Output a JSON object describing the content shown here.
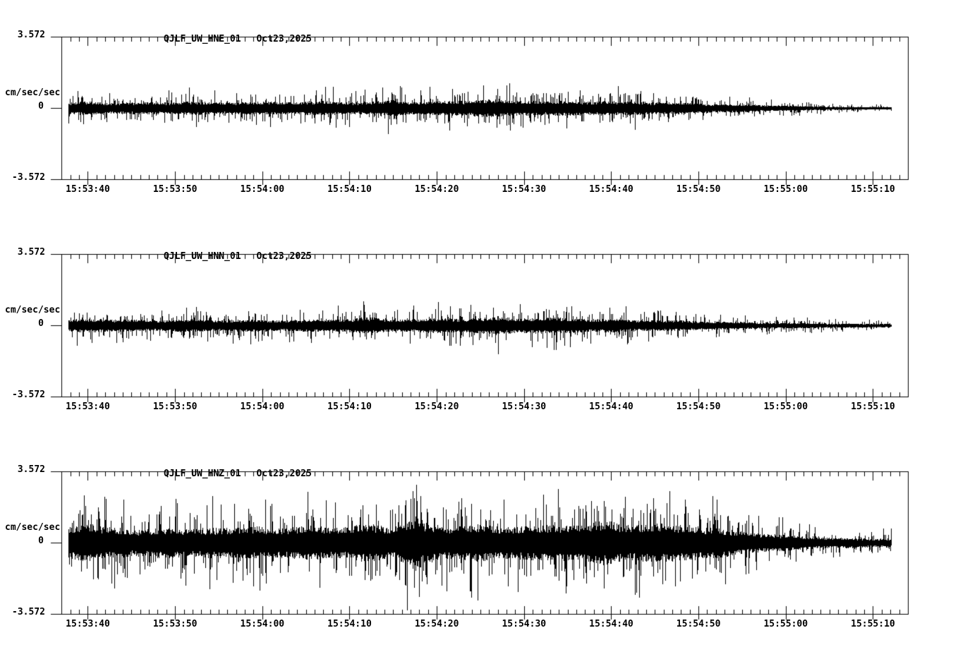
{
  "page": {
    "background": "#ffffff",
    "foreground": "#000000",
    "description_units": "cm/sec/sec"
  },
  "x_axis": {
    "labels": [
      "15:53:40",
      "15:53:50",
      "15:54:00",
      "15:54:10",
      "15:54:20",
      "15:54:30",
      "15:54:40",
      "15:54:50",
      "15:55:00",
      "15:55:10"
    ],
    "start_time": "15:53:37",
    "end_time": "15:55:14",
    "major_tick_interval_sec": 10,
    "minor_tick_interval_sec": 1
  },
  "chart_data": [
    {
      "type": "line",
      "title": "QJLF_UW_HNE_01   Oct23,2025",
      "title_channel": "QJLF_UW_HNE_01",
      "title_date": "Oct23,2025",
      "ylabel": "cm/sec/sec",
      "ylim": [
        -3.572,
        3.572
      ],
      "yticks": [
        "3.572",
        "0",
        "-3.572"
      ],
      "x": [
        "15:53:40",
        "15:53:50",
        "15:54:00",
        "15:54:10",
        "15:54:20",
        "15:54:30",
        "15:54:40",
        "15:54:50",
        "15:55:00",
        "15:55:10"
      ],
      "trace_start": "15:53:38",
      "trace_end": "15:55:12",
      "noise_seed": 101,
      "envelope_points_t_sec": [
        0,
        3,
        6,
        10,
        14,
        18,
        22,
        26,
        30,
        34,
        38,
        40,
        43,
        46,
        48,
        50,
        52,
        54,
        56,
        58,
        60,
        62,
        64,
        66,
        68,
        70,
        72,
        74,
        76,
        78,
        80,
        82,
        84,
        86,
        88,
        90,
        92,
        94.5
      ],
      "envelope_points_amp": [
        0.75,
        0.95,
        0.8,
        0.85,
        0.95,
        0.85,
        0.9,
        0.95,
        1.0,
        0.9,
        1.15,
        0.95,
        1.0,
        1.1,
        1.3,
        1.25,
        1.05,
        1.15,
        1.0,
        1.05,
        1.0,
        1.1,
        0.95,
        1.0,
        0.9,
        0.85,
        0.75,
        0.65,
        0.6,
        0.55,
        0.5,
        0.42,
        0.36,
        0.3,
        0.26,
        0.22,
        0.2,
        0.18
      ]
    },
    {
      "type": "line",
      "title": "QJLF_UW_HNN_01   Oct23,2025",
      "title_channel": "QJLF_UW_HNN_01",
      "title_date": "Oct23,2025",
      "ylabel": "cm/sec/sec",
      "ylim": [
        -3.572,
        3.572
      ],
      "yticks": [
        "3.572",
        "0",
        "-3.572"
      ],
      "x": [
        "15:53:40",
        "15:53:50",
        "15:54:00",
        "15:54:10",
        "15:54:20",
        "15:54:30",
        "15:54:40",
        "15:54:50",
        "15:55:00",
        "15:55:10"
      ],
      "trace_start": "15:53:38",
      "trace_end": "15:55:12",
      "noise_seed": 202,
      "envelope_points_t_sec": [
        0,
        2,
        4,
        6,
        10,
        14,
        18,
        22,
        26,
        30,
        33,
        35,
        37,
        40,
        43,
        46,
        48,
        50,
        52,
        54,
        56,
        58,
        60,
        62,
        64,
        66,
        68,
        70,
        73,
        76,
        79,
        82,
        85,
        88,
        91,
        94.5
      ],
      "envelope_points_amp": [
        0.7,
        0.95,
        1.05,
        0.85,
        0.8,
        0.9,
        0.8,
        0.85,
        0.8,
        0.9,
        1.0,
        1.15,
        0.9,
        0.95,
        1.05,
        1.0,
        1.15,
        1.25,
        1.1,
        1.2,
        1.05,
        1.1,
        1.0,
        0.95,
        0.9,
        0.85,
        0.8,
        0.75,
        0.65,
        0.55,
        0.48,
        0.42,
        0.38,
        0.34,
        0.3,
        0.28
      ]
    },
    {
      "type": "line",
      "title": "QJLF_UW_HNZ_01   Oct23,2025",
      "title_channel": "QJLF_UW_HNZ_01",
      "title_date": "Oct23,2025",
      "ylabel": "cm/sec/sec",
      "ylim": [
        -3.572,
        3.572
      ],
      "yticks": [
        "3.572",
        "0",
        "-3.572"
      ],
      "x": [
        "15:53:40",
        "15:53:50",
        "15:54:00",
        "15:54:10",
        "15:54:20",
        "15:54:30",
        "15:54:40",
        "15:54:50",
        "15:55:00",
        "15:55:10"
      ],
      "trace_start": "15:53:38",
      "trace_end": "15:55:12",
      "noise_seed": 303,
      "envelope_points_t_sec": [
        0,
        2,
        3.5,
        5,
        8,
        11,
        14,
        17,
        20,
        23,
        26,
        29,
        32,
        35,
        38,
        40,
        40.7,
        41.5,
        44,
        47,
        50,
        53,
        56,
        59,
        61,
        63,
        65,
        67,
        70,
        72,
        74,
        76,
        78,
        80,
        82,
        84,
        86,
        88,
        90,
        92,
        94.5
      ],
      "envelope_points_amp": [
        1.8,
        2.6,
        2.9,
        2.2,
        1.9,
        2.2,
        1.9,
        2.3,
        2.0,
        2.4,
        2.1,
        2.5,
        2.2,
        2.6,
        2.4,
        3.3,
        3.9,
        2.8,
        2.4,
        2.6,
        2.3,
        2.5,
        2.4,
        2.7,
        3.0,
        2.9,
        2.6,
        2.8,
        2.5,
        2.7,
        2.3,
        1.9,
        1.6,
        1.4,
        1.2,
        1.0,
        0.85,
        0.75,
        0.7,
        0.65,
        0.7
      ]
    }
  ]
}
